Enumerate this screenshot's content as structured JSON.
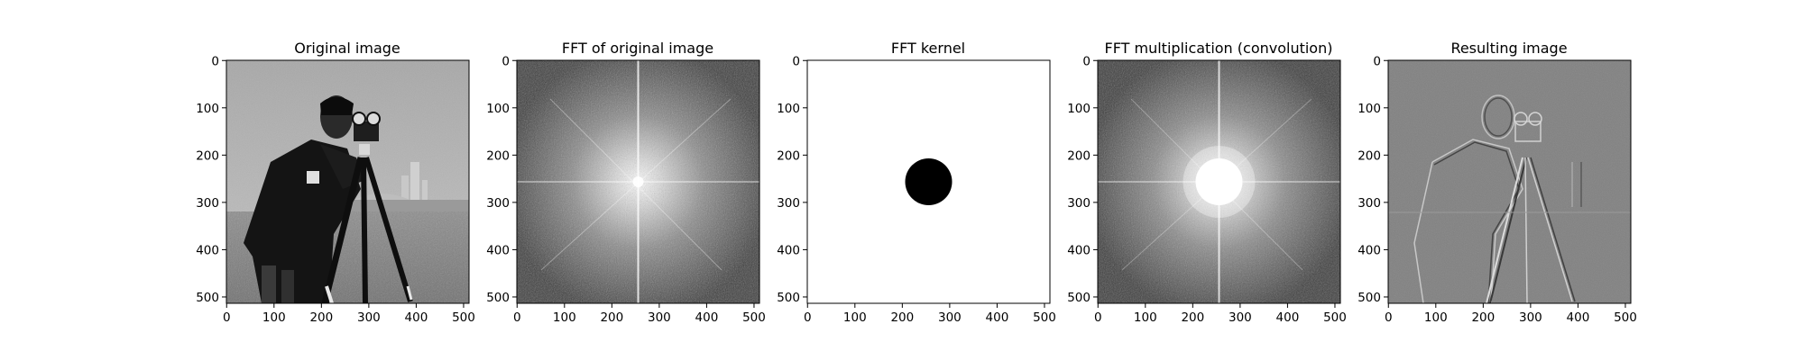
{
  "figure": {
    "panels": [
      {
        "id": "original",
        "title": "Original image",
        "content": "cameraman photo (grayscale)",
        "x_ticks": [
          "0",
          "100",
          "200",
          "300",
          "400",
          "500"
        ],
        "y_ticks": [
          "0",
          "100",
          "200",
          "300",
          "400",
          "500"
        ]
      },
      {
        "id": "fft",
        "title": "FFT of original image",
        "content": "log-magnitude spectrum",
        "x_ticks": [
          "0",
          "100",
          "200",
          "300",
          "400",
          "500"
        ],
        "y_ticks": [
          "0",
          "100",
          "200",
          "300",
          "400",
          "500"
        ]
      },
      {
        "id": "kernel",
        "title": "FFT kernel",
        "content": "white field with black disk at center",
        "x_ticks": [
          "0",
          "100",
          "200",
          "300",
          "400",
          "500"
        ],
        "y_ticks": [
          "0",
          "100",
          "200",
          "300",
          "400",
          "500"
        ]
      },
      {
        "id": "mult",
        "title": "FFT multiplication (convolution)",
        "content": "spectrum with low frequencies removed",
        "x_ticks": [
          "0",
          "100",
          "200",
          "300",
          "400",
          "500"
        ],
        "y_ticks": [
          "0",
          "100",
          "200",
          "300",
          "400",
          "500"
        ]
      },
      {
        "id": "result",
        "title": "Resulting image",
        "content": "high-pass filtered edges on gray",
        "x_ticks": [
          "0",
          "100",
          "200",
          "300",
          "400",
          "500"
        ],
        "y_ticks": [
          "0",
          "100",
          "200",
          "300",
          "400",
          "500"
        ]
      }
    ],
    "colors": {
      "background": "#ffffff",
      "spectrum_dark": "#3a3a3a",
      "spectrum_bright": "#f0f0f0",
      "result_gray": "#808080",
      "kernel_disk": "#000000"
    }
  }
}
